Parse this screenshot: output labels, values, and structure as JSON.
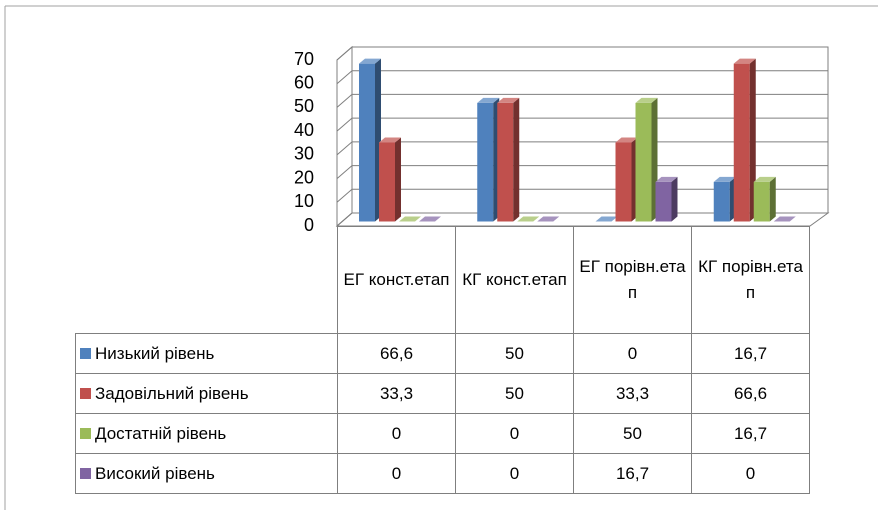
{
  "chart_data": {
    "type": "bar3d",
    "categories": [
      "ЕГ конст.етап",
      "КГ конст.етап",
      "ЕГ порівн.етап",
      "КГ порівн.етап"
    ],
    "series": [
      {
        "name": "Низький рівень",
        "color": "#4f81bd",
        "values": [
          66.6,
          50,
          0,
          16.7
        ],
        "value_labels": [
          "66,6",
          "50",
          "0",
          "16,7"
        ]
      },
      {
        "name": "Задовільний рівень",
        "color": "#c0504d",
        "values": [
          33.3,
          50,
          33.3,
          66.6
        ],
        "value_labels": [
          "33,3",
          "50",
          "33,3",
          "66,6"
        ]
      },
      {
        "name": "Достатній рівень",
        "color": "#9bbb59",
        "values": [
          0,
          0,
          50,
          16.7
        ],
        "value_labels": [
          "0",
          "0",
          "50",
          "16,7"
        ]
      },
      {
        "name": "Високий рівень",
        "color": "#8064a2",
        "values": [
          0,
          0,
          16.7,
          0
        ],
        "value_labels": [
          "0",
          "0",
          "16,7",
          "0"
        ]
      }
    ],
    "ylim": [
      0,
      70
    ],
    "yticks": [
      0,
      10,
      20,
      30,
      40,
      50,
      60,
      70
    ],
    "grid": true
  }
}
